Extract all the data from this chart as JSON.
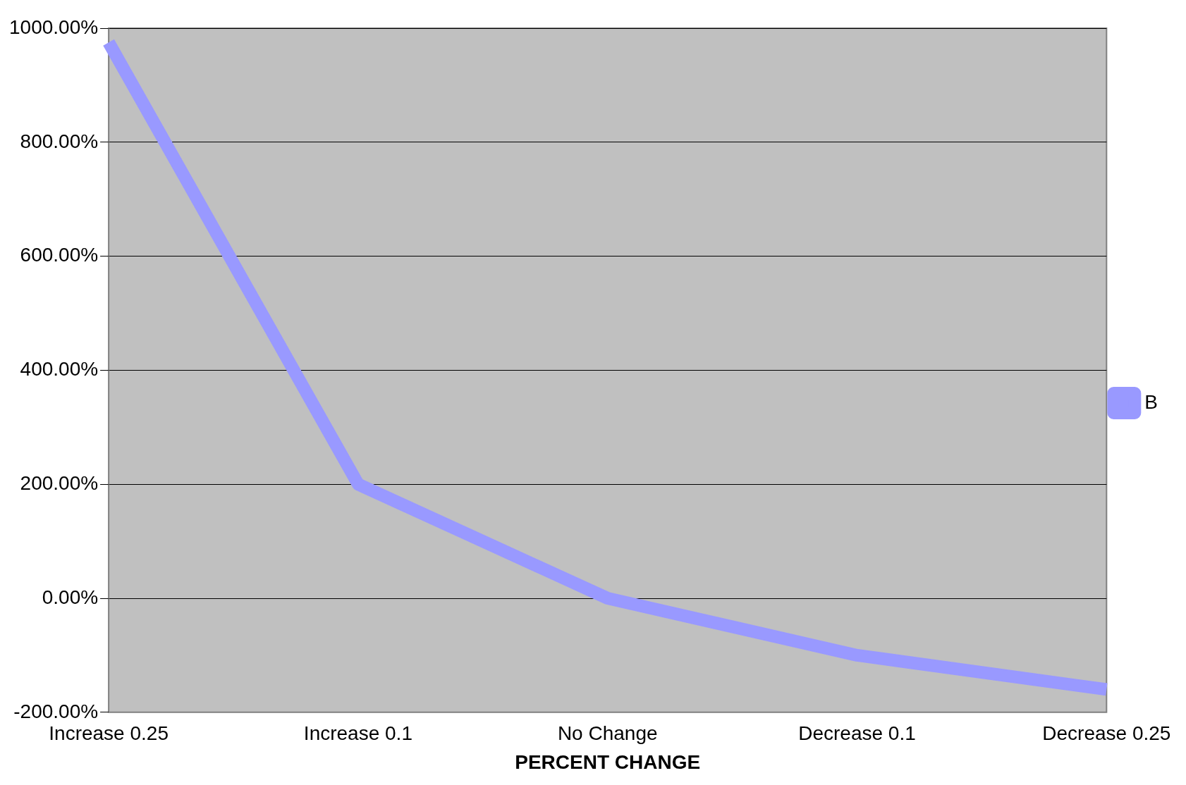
{
  "chart_data": {
    "type": "line",
    "xlabel": "PERCENT CHANGE",
    "categories": [
      "Increase 0.25",
      "Increase 0.1",
      "No Change",
      "Decrease 0.1",
      "Decrease 0.25"
    ],
    "series": [
      {
        "name": "B",
        "color": "#9999ff",
        "values": [
          975,
          200,
          0,
          -100,
          -160
        ]
      }
    ],
    "ylim": [
      -200,
      1000
    ],
    "yticks": [
      {
        "value": -200,
        "label": "-200.00%"
      },
      {
        "value": 0,
        "label": "0.00%"
      },
      {
        "value": 200,
        "label": "200.00%"
      },
      {
        "value": 400,
        "label": "400.00%"
      },
      {
        "value": 600,
        "label": "600.00%"
      },
      {
        "value": 800,
        "label": "800.00%"
      },
      {
        "value": 1000,
        "label": "1000.00%"
      }
    ],
    "grid": "y",
    "legend": "right",
    "marker": "none",
    "line_style": "solid"
  }
}
